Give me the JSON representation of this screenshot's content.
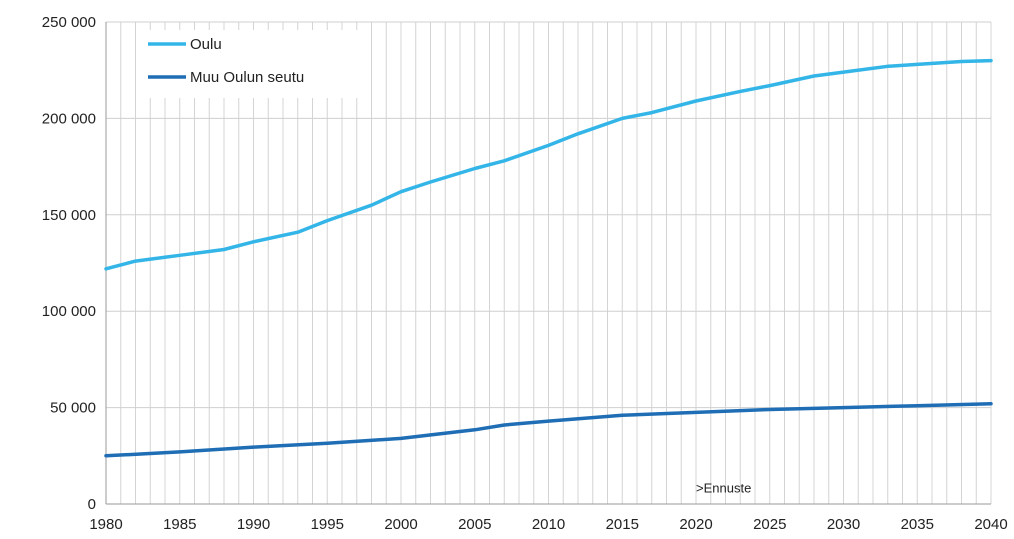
{
  "chart_data": {
    "type": "line",
    "title": "",
    "xlabel": "",
    "ylabel": "",
    "xlim": [
      1980,
      2040
    ],
    "ylim": [
      0,
      250000
    ],
    "grid": {
      "vertical": true,
      "horizontal": true
    },
    "legend_position": "top-left",
    "y_ticks": [
      0,
      50000,
      100000,
      150000,
      200000,
      250000
    ],
    "y_tick_labels": [
      "0",
      "50 000",
      "100 000",
      "150 000",
      "200 000",
      "250 000"
    ],
    "x_ticks": [
      1980,
      1985,
      1990,
      1995,
      2000,
      2005,
      2010,
      2015,
      2020,
      2025,
      2030,
      2035,
      2040
    ],
    "x_tick_labels": [
      "1980",
      "1985",
      "1990",
      "1995",
      "2000",
      "2005",
      "2010",
      "2015",
      "2020",
      "2025",
      "2030",
      "2035",
      "2040"
    ],
    "annotation": {
      "text": ">Ennuste",
      "x": 2020,
      "y": 6000
    },
    "series": [
      {
        "name": "Oulu",
        "color": "#33b5e8",
        "x": [
          1980,
          1982,
          1985,
          1988,
          1990,
          1993,
          1995,
          1998,
          2000,
          2002,
          2005,
          2007,
          2010,
          2012,
          2015,
          2017,
          2020,
          2023,
          2025,
          2028,
          2030,
          2033,
          2035,
          2038,
          2040
        ],
        "y": [
          122000,
          126000,
          129000,
          132000,
          136000,
          141000,
          147000,
          155000,
          162000,
          167000,
          174000,
          178000,
          186000,
          192000,
          200000,
          203000,
          209000,
          214000,
          217000,
          222000,
          224000,
          227000,
          228000,
          229500,
          230000
        ]
      },
      {
        "name": "Muu Oulun seutu",
        "color": "#1f6eb5",
        "x": [
          1980,
          1985,
          1990,
          1995,
          2000,
          2005,
          2007,
          2010,
          2015,
          2020,
          2025,
          2030,
          2035,
          2040
        ],
        "y": [
          25000,
          27000,
          29500,
          31500,
          34000,
          38500,
          41000,
          43000,
          46000,
          47500,
          49000,
          50000,
          51000,
          52000
        ]
      }
    ]
  }
}
